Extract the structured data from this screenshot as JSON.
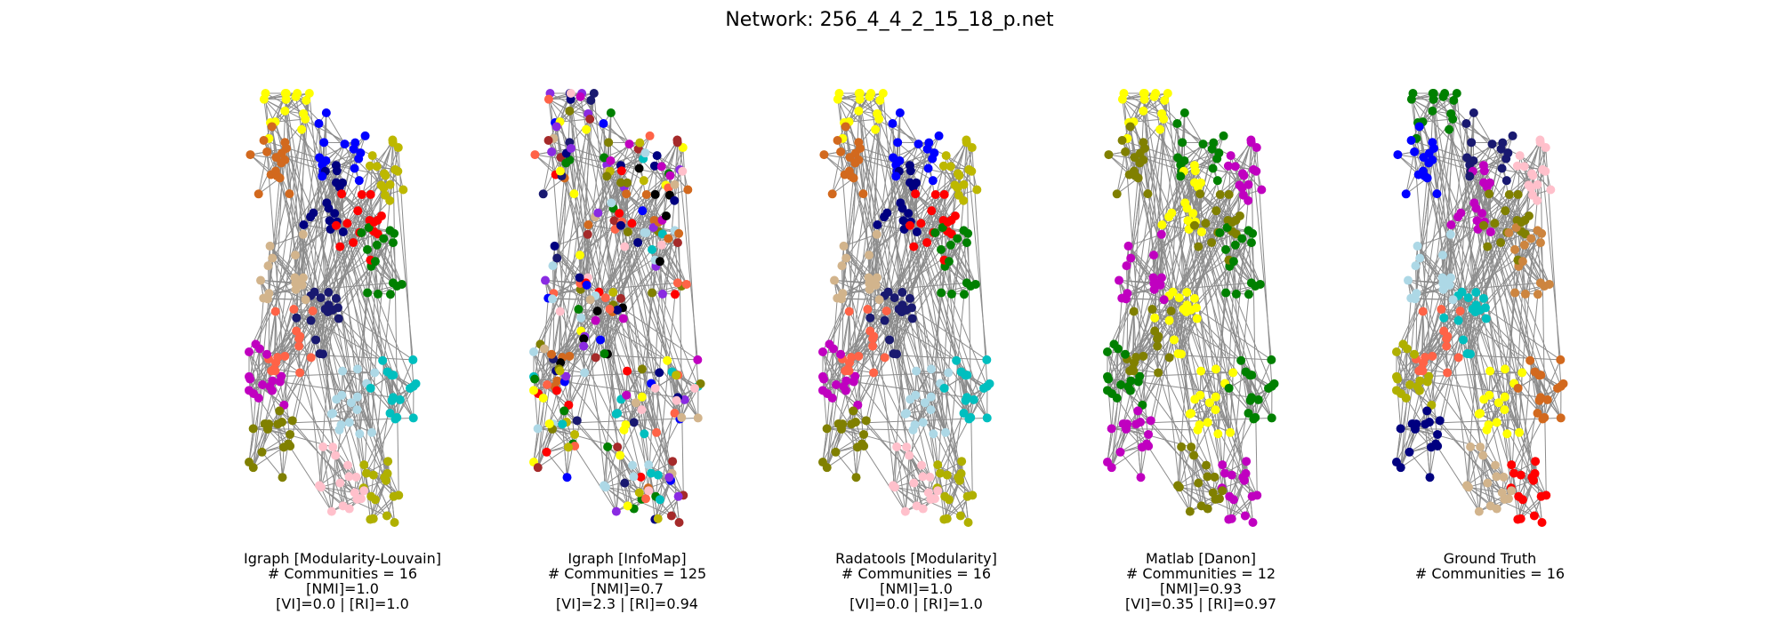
{
  "figure_title": "Network: 256_4_4_2_15_18_p.net",
  "chart_data": [
    {
      "type": "network",
      "method": "Igraph [Modularity-Louvain]",
      "communities_label": "# Communities = 16",
      "communities": 16,
      "nmi_label": "[NMI]=1.0",
      "nmi": 1.0,
      "vi_ri_label": "[VI]=0.0 | [RI]=1.0",
      "vi": 0.0,
      "ri": 1.0,
      "palette": [
        "#ffff00",
        "#d2691e",
        "#0000ff",
        "#bdb800",
        "#000080",
        "#ff0000",
        "#008000",
        "#d2b48c",
        "#191970",
        "#ff6347",
        "#c000c0",
        "#808000",
        "#add8e6",
        "#ffc0cb",
        "#00bfbf",
        "#b0b000"
      ]
    },
    {
      "type": "network",
      "method": "Igraph [InfoMap]",
      "communities_label": "# Communities = 125",
      "communities": 125,
      "nmi_label": "[NMI]=0.7",
      "nmi": 0.7,
      "vi_ri_label": "[VI]=2.3 | [RI]=0.94",
      "vi": 2.3,
      "ri": 0.94,
      "palette": [
        "#ffff00",
        "#d2691e",
        "#0000ff",
        "#bdb800",
        "#000080",
        "#ff0000",
        "#008000",
        "#d2b48c",
        "#191970",
        "#ff6347",
        "#c000c0",
        "#808000",
        "#add8e6",
        "#ffc0cb",
        "#00bfbf",
        "#a52a2a",
        "#000000",
        "#8a2be2"
      ]
    },
    {
      "type": "network",
      "method": "Radatools [Modularity]",
      "communities_label": "# Communities = 16",
      "communities": 16,
      "nmi_label": "[NMI]=1.0",
      "nmi": 1.0,
      "vi_ri_label": "[VI]=0.0 | [RI]=1.0",
      "vi": 0.0,
      "ri": 1.0,
      "palette": [
        "#ffff00",
        "#d2691e",
        "#0000ff",
        "#bdb800",
        "#000080",
        "#ff0000",
        "#008000",
        "#d2b48c",
        "#191970",
        "#ff6347",
        "#c000c0",
        "#808000",
        "#add8e6",
        "#ffc0cb",
        "#00bfbf",
        "#b0b000"
      ]
    },
    {
      "type": "network",
      "method": "Matlab [Danon]",
      "communities_label": "# Communities = 12",
      "communities": 12,
      "nmi_label": "[NMI]=0.93",
      "nmi": 0.93,
      "vi_ri_label": "[VI]=0.35 | [RI]=0.97",
      "vi": 0.35,
      "ri": 0.97,
      "palette": [
        "#ffff00",
        "#ff6347",
        "#0000ff",
        "#808000",
        "#000080",
        "#ff0000",
        "#008000",
        "#d2b48c",
        "#191970",
        "#c000c0",
        "#bdb800",
        "#d2691e"
      ]
    },
    {
      "type": "network",
      "method": "Ground Truth",
      "communities_label": "# Communities = 16",
      "communities": 16,
      "nmi_label": "",
      "vi_ri_label": "",
      "palette": [
        "#000080",
        "#ffff00",
        "#d2b48c",
        "#d2691e",
        "#ff0000",
        "#008000",
        "#0000ff",
        "#191970",
        "#ffc0cb",
        "#c000c0",
        "#808000",
        "#cd853f",
        "#add8e6",
        "#00bfbf",
        "#ff6347",
        "#b0b000"
      ]
    }
  ]
}
